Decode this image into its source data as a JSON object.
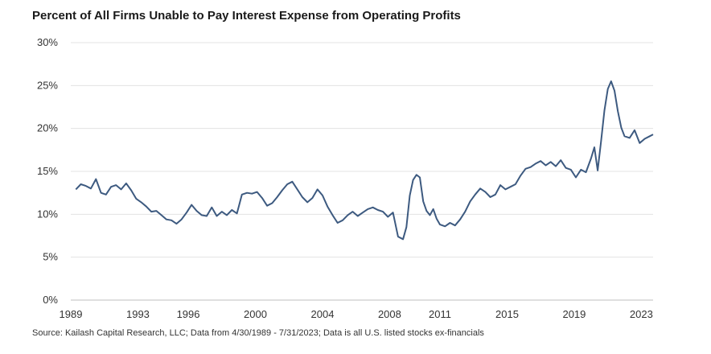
{
  "chart_data": {
    "type": "line",
    "title": "Percent of All Firms Unable to Pay Interest Expense from Operating Profits",
    "source": "Source: Kailash Capital Research, LLC; Data from 4/30/1989 - 7/31/2023; Data is all U.S. listed stocks ex-financials",
    "xlabel": "",
    "ylabel": "",
    "xlim": [
      1989.0,
      2023.7
    ],
    "ylim": [
      0,
      30
    ],
    "x_ticks": [
      1989,
      1993,
      1996,
      2000,
      2004,
      2008,
      2011,
      2015,
      2019,
      2023
    ],
    "y_ticks": [
      {
        "value": 0,
        "label": "0%"
      },
      {
        "value": 5,
        "label": "5%"
      },
      {
        "value": 10,
        "label": "10%"
      },
      {
        "value": 15,
        "label": "15%"
      },
      {
        "value": 20,
        "label": "20%"
      },
      {
        "value": 25,
        "label": "25%"
      },
      {
        "value": 30,
        "label": "30%"
      }
    ],
    "grid": "horizontal",
    "line_color": "#3d5a80",
    "series": [
      {
        "x": [
          1989.3,
          1989.6,
          1989.9,
          1990.2,
          1990.5,
          1990.8,
          1991.1,
          1991.4,
          1991.7,
          1992.0,
          1992.3,
          1992.6,
          1992.9,
          1993.2,
          1993.5,
          1993.8,
          1994.1,
          1994.4,
          1994.7,
          1995.0,
          1995.3,
          1995.6,
          1995.9,
          1996.2,
          1996.5,
          1996.8,
          1997.1,
          1997.4,
          1997.7,
          1998.0,
          1998.3,
          1998.6,
          1998.9,
          1999.2,
          1999.5,
          1999.8,
          2000.1,
          2000.4,
          2000.7,
          2001.0,
          2001.3,
          2001.6,
          2001.9,
          2002.2,
          2002.5,
          2002.8,
          2003.1,
          2003.4,
          2003.7,
          2004.0,
          2004.3,
          2004.6,
          2004.9,
          2005.2,
          2005.5,
          2005.8,
          2006.1,
          2006.4,
          2006.7,
          2007.0,
          2007.3,
          2007.6,
          2007.9,
          2008.2,
          2008.5,
          2008.8,
          2009.0,
          2009.2,
          2009.4,
          2009.6,
          2009.8,
          2010.0,
          2010.2,
          2010.4,
          2010.6,
          2010.8,
          2011.0,
          2011.3,
          2011.6,
          2011.9,
          2012.2,
          2012.5,
          2012.8,
          2013.1,
          2013.4,
          2013.7,
          2014.0,
          2014.3,
          2014.6,
          2014.9,
          2015.2,
          2015.5,
          2015.8,
          2016.1,
          2016.4,
          2016.7,
          2017.0,
          2017.3,
          2017.6,
          2017.9,
          2018.2,
          2018.5,
          2018.8,
          2019.1,
          2019.4,
          2019.7,
          2020.0,
          2020.2,
          2020.4,
          2020.6,
          2020.8,
          2021.0,
          2021.2,
          2021.4,
          2021.6,
          2021.8,
          2022.0,
          2022.3,
          2022.6,
          2022.9,
          2023.2,
          2023.5,
          2023.7
        ],
        "values": [
          12.9,
          13.5,
          13.3,
          13.0,
          14.1,
          12.5,
          12.3,
          13.2,
          13.4,
          12.9,
          13.6,
          12.8,
          11.8,
          11.4,
          10.9,
          10.3,
          10.4,
          9.9,
          9.4,
          9.3,
          8.9,
          9.4,
          10.2,
          11.1,
          10.4,
          9.9,
          9.8,
          10.8,
          9.8,
          10.3,
          9.9,
          10.5,
          10.1,
          12.3,
          12.5,
          12.4,
          12.6,
          11.9,
          11.0,
          11.3,
          12.0,
          12.8,
          13.5,
          13.8,
          12.9,
          12.0,
          11.4,
          11.9,
          12.9,
          12.2,
          10.9,
          9.9,
          9.0,
          9.3,
          9.9,
          10.3,
          9.8,
          10.2,
          10.6,
          10.8,
          10.5,
          10.3,
          9.7,
          10.2,
          7.4,
          7.1,
          8.5,
          12.2,
          14.0,
          14.6,
          14.3,
          11.5,
          10.4,
          9.9,
          10.6,
          9.5,
          8.8,
          8.6,
          9.0,
          8.7,
          9.4,
          10.3,
          11.5,
          12.3,
          13.0,
          12.6,
          12.0,
          12.3,
          13.4,
          12.9,
          13.2,
          13.5,
          14.5,
          15.3,
          15.5,
          15.9,
          16.2,
          15.7,
          16.1,
          15.6,
          16.3,
          15.4,
          15.2,
          14.3,
          15.2,
          14.9,
          16.5,
          17.8,
          15.1,
          18.5,
          22.1,
          24.6,
          25.5,
          24.4,
          22.0,
          20.1,
          19.1,
          18.9,
          19.8,
          18.3,
          18.8,
          19.1,
          19.3
        ]
      }
    ]
  }
}
